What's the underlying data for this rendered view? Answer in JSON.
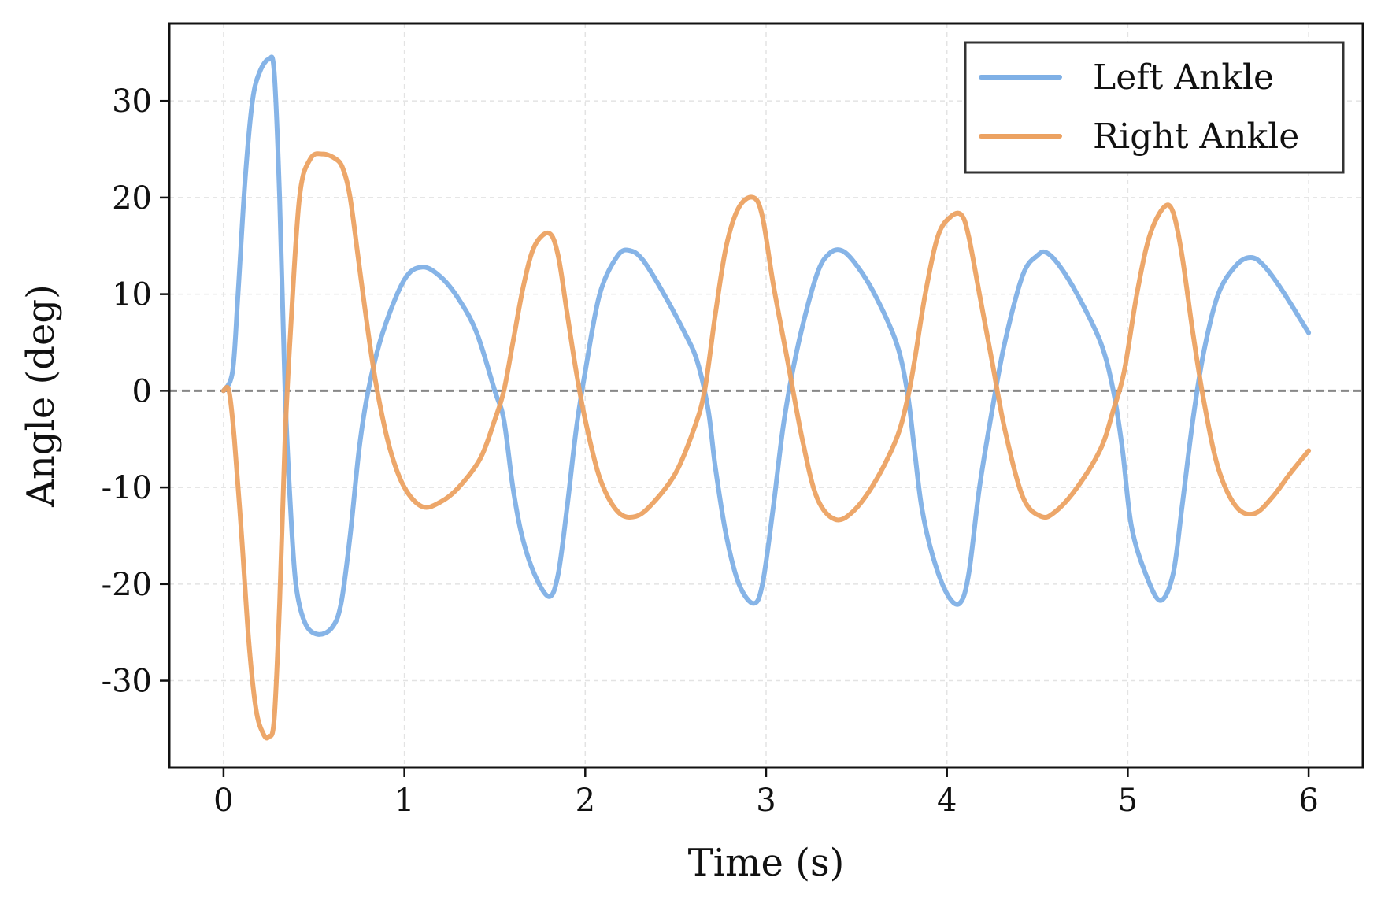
{
  "chart_data": {
    "type": "line",
    "title": "",
    "xlabel": "Time (s)",
    "ylabel": "Angle (deg)",
    "xlim": [
      -0.3,
      6.3
    ],
    "ylim": [
      -39,
      38
    ],
    "xticks": [
      0,
      1,
      2,
      3,
      4,
      5,
      6
    ],
    "yticks": [
      -30,
      -20,
      -10,
      0,
      10,
      20,
      30
    ],
    "xtick_labels": [
      "0",
      "1",
      "2",
      "3",
      "4",
      "5",
      "6"
    ],
    "ytick_labels": [
      "-30",
      "-20",
      "-10",
      "0",
      "10",
      "20",
      "30"
    ],
    "grid": true,
    "reference_line": {
      "y": 0,
      "style": "dashed",
      "color": "#888888"
    },
    "legend": {
      "position": "top-right"
    },
    "series": [
      {
        "name": "Left Ankle",
        "color": "#7FB0E6",
        "points": [
          [
            0.0,
            0
          ],
          [
            0.05,
            2
          ],
          [
            0.08,
            10
          ],
          [
            0.12,
            22
          ],
          [
            0.16,
            30
          ],
          [
            0.2,
            33
          ],
          [
            0.25,
            34.3
          ],
          [
            0.28,
            33
          ],
          [
            0.31,
            20
          ],
          [
            0.34,
            0
          ],
          [
            0.37,
            -12
          ],
          [
            0.4,
            -20
          ],
          [
            0.45,
            -24
          ],
          [
            0.52,
            -25.2
          ],
          [
            0.6,
            -24.5
          ],
          [
            0.65,
            -22
          ],
          [
            0.7,
            -15
          ],
          [
            0.75,
            -6
          ],
          [
            0.8,
            0
          ],
          [
            0.88,
            6
          ],
          [
            1.0,
            11.5
          ],
          [
            1.1,
            12.8
          ],
          [
            1.2,
            11.8
          ],
          [
            1.3,
            9.5
          ],
          [
            1.4,
            6
          ],
          [
            1.5,
            0
          ],
          [
            1.55,
            -3
          ],
          [
            1.6,
            -10
          ],
          [
            1.65,
            -15
          ],
          [
            1.72,
            -19
          ],
          [
            1.8,
            -21.3
          ],
          [
            1.85,
            -19
          ],
          [
            1.9,
            -12
          ],
          [
            1.95,
            -4
          ],
          [
            2.0,
            2
          ],
          [
            2.08,
            10
          ],
          [
            2.18,
            14
          ],
          [
            2.25,
            14.5
          ],
          [
            2.32,
            13.5
          ],
          [
            2.42,
            10.5
          ],
          [
            2.55,
            6
          ],
          [
            2.62,
            3
          ],
          [
            2.68,
            -2
          ],
          [
            2.72,
            -8
          ],
          [
            2.78,
            -15
          ],
          [
            2.85,
            -20
          ],
          [
            2.93,
            -22
          ],
          [
            2.98,
            -20
          ],
          [
            3.04,
            -12
          ],
          [
            3.1,
            -3
          ],
          [
            3.18,
            5
          ],
          [
            3.28,
            12
          ],
          [
            3.35,
            14.2
          ],
          [
            3.42,
            14.5
          ],
          [
            3.5,
            13
          ],
          [
            3.6,
            10
          ],
          [
            3.72,
            5
          ],
          [
            3.78,
            0
          ],
          [
            3.82,
            -6
          ],
          [
            3.86,
            -12
          ],
          [
            3.92,
            -17
          ],
          [
            4.0,
            -21
          ],
          [
            4.07,
            -22
          ],
          [
            4.12,
            -19
          ],
          [
            4.18,
            -10
          ],
          [
            4.25,
            -2
          ],
          [
            4.32,
            5
          ],
          [
            4.42,
            12
          ],
          [
            4.5,
            14
          ],
          [
            4.55,
            14.3
          ],
          [
            4.62,
            13
          ],
          [
            4.72,
            10
          ],
          [
            4.85,
            5
          ],
          [
            4.92,
            0
          ],
          [
            4.97,
            -6
          ],
          [
            5.02,
            -14
          ],
          [
            5.1,
            -19
          ],
          [
            5.18,
            -21.7
          ],
          [
            5.25,
            -19
          ],
          [
            5.3,
            -12
          ],
          [
            5.36,
            -3
          ],
          [
            5.42,
            4
          ],
          [
            5.5,
            10
          ],
          [
            5.6,
            13
          ],
          [
            5.68,
            13.8
          ],
          [
            5.75,
            13
          ],
          [
            5.85,
            10.5
          ],
          [
            6.0,
            6
          ]
        ]
      },
      {
        "name": "Right Ankle",
        "color": "#ECA262",
        "points": [
          [
            0.0,
            0
          ],
          [
            0.03,
            0
          ],
          [
            0.06,
            -5
          ],
          [
            0.1,
            -15
          ],
          [
            0.14,
            -26
          ],
          [
            0.18,
            -33
          ],
          [
            0.22,
            -35.5
          ],
          [
            0.25,
            -35.8
          ],
          [
            0.28,
            -34
          ],
          [
            0.31,
            -22
          ],
          [
            0.34,
            -5
          ],
          [
            0.37,
            6
          ],
          [
            0.42,
            20
          ],
          [
            0.48,
            24
          ],
          [
            0.55,
            24.5
          ],
          [
            0.62,
            24
          ],
          [
            0.66,
            23
          ],
          [
            0.7,
            20
          ],
          [
            0.75,
            13
          ],
          [
            0.8,
            6
          ],
          [
            0.85,
            0
          ],
          [
            0.92,
            -6
          ],
          [
            1.0,
            -10
          ],
          [
            1.1,
            -12
          ],
          [
            1.2,
            -11.5
          ],
          [
            1.3,
            -10
          ],
          [
            1.42,
            -7
          ],
          [
            1.5,
            -3
          ],
          [
            1.55,
            0
          ],
          [
            1.6,
            5
          ],
          [
            1.66,
            11
          ],
          [
            1.72,
            15
          ],
          [
            1.8,
            16.3
          ],
          [
            1.85,
            14
          ],
          [
            1.9,
            8
          ],
          [
            1.95,
            2
          ],
          [
            2.0,
            -3
          ],
          [
            2.08,
            -9
          ],
          [
            2.18,
            -12.5
          ],
          [
            2.28,
            -13
          ],
          [
            2.38,
            -11.5
          ],
          [
            2.5,
            -8.5
          ],
          [
            2.6,
            -4
          ],
          [
            2.66,
            0
          ],
          [
            2.72,
            8
          ],
          [
            2.78,
            15
          ],
          [
            2.85,
            19
          ],
          [
            2.93,
            20
          ],
          [
            2.98,
            18
          ],
          [
            3.04,
            11
          ],
          [
            3.12,
            3
          ],
          [
            3.2,
            -5
          ],
          [
            3.28,
            -11
          ],
          [
            3.38,
            -13.3
          ],
          [
            3.48,
            -12.5
          ],
          [
            3.6,
            -9.5
          ],
          [
            3.72,
            -5
          ],
          [
            3.78,
            -1
          ],
          [
            3.82,
            3
          ],
          [
            3.88,
            10
          ],
          [
            3.95,
            16
          ],
          [
            4.02,
            18
          ],
          [
            4.08,
            18.2
          ],
          [
            4.12,
            16
          ],
          [
            4.18,
            10
          ],
          [
            4.25,
            3
          ],
          [
            4.32,
            -4
          ],
          [
            4.42,
            -11
          ],
          [
            4.52,
            -13
          ],
          [
            4.6,
            -12.5
          ],
          [
            4.72,
            -10
          ],
          [
            4.85,
            -6
          ],
          [
            4.92,
            -2
          ],
          [
            4.98,
            2
          ],
          [
            5.05,
            10
          ],
          [
            5.12,
            16
          ],
          [
            5.2,
            19
          ],
          [
            5.25,
            18.5
          ],
          [
            5.3,
            14
          ],
          [
            5.36,
            6
          ],
          [
            5.42,
            -1
          ],
          [
            5.5,
            -8
          ],
          [
            5.6,
            -12
          ],
          [
            5.7,
            -12.7
          ],
          [
            5.8,
            -11
          ],
          [
            5.9,
            -8.5
          ],
          [
            6.0,
            -6.2
          ]
        ]
      }
    ]
  }
}
